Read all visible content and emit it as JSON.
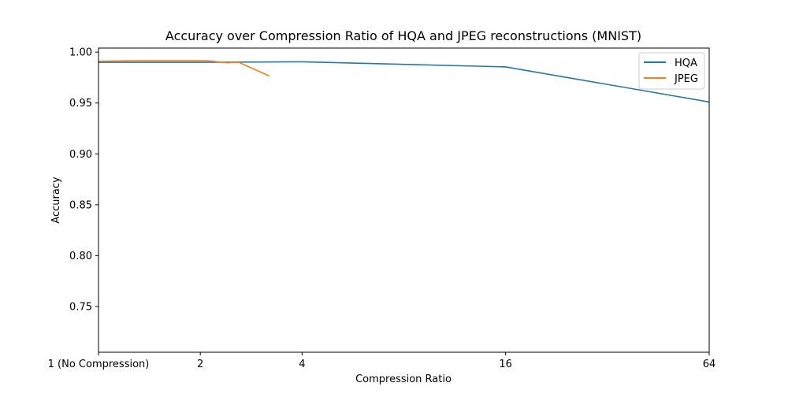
{
  "chart_data": {
    "type": "line",
    "title": "Accuracy over Compression Ratio of HQA and JPEG reconstructions (MNIST)",
    "xlabel": "Compression Ratio",
    "ylabel": "Accuracy",
    "xscale": "log2",
    "xlim": [
      1,
      64
    ],
    "ylim": [
      0.705,
      1.004
    ],
    "x_ticks": [
      {
        "value": 1,
        "label": "1 (No Compression)"
      },
      {
        "value": 2,
        "label": "2"
      },
      {
        "value": 4,
        "label": "4"
      },
      {
        "value": 16,
        "label": "16"
      },
      {
        "value": 64,
        "label": "64"
      }
    ],
    "y_ticks": [
      {
        "value": 0.75,
        "label": "0.75"
      },
      {
        "value": 0.8,
        "label": "0.80"
      },
      {
        "value": 0.85,
        "label": "0.85"
      },
      {
        "value": 0.9,
        "label": "0.90"
      },
      {
        "value": 0.95,
        "label": "0.95"
      },
      {
        "value": 1.0,
        "label": "1.00"
      }
    ],
    "grid": false,
    "legend_position": "top-right",
    "series": [
      {
        "name": "HQA",
        "color": "#1f77b4",
        "points": [
          [
            1,
            0.99
          ],
          [
            2,
            0.99
          ],
          [
            4,
            0.9905
          ],
          [
            16,
            0.9855
          ],
          [
            64,
            0.951
          ]
        ]
      },
      {
        "name": "JPEG",
        "color": "#ff7f0e",
        "points": [
          [
            1,
            0.991
          ],
          [
            1.25,
            0.9915
          ],
          [
            2.1,
            0.9915
          ],
          [
            2.4,
            0.9895
          ],
          [
            2.6,
            0.99
          ],
          [
            3.2,
            0.9765
          ]
        ]
      }
    ]
  }
}
